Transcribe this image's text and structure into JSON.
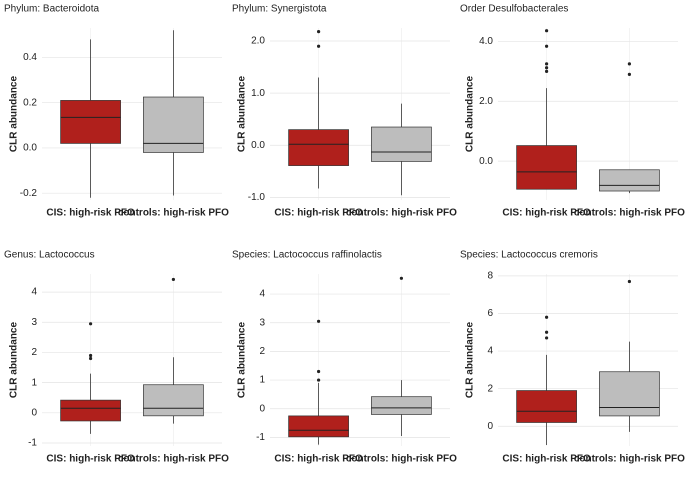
{
  "chart_data": [
    {
      "type": "box",
      "title": "Phylum: Bacteroidota",
      "y_label": "CLR abundance",
      "categories": [
        "CIS: high-risk PFO",
        "controls: high-risk PFO"
      ],
      "colors": [
        "#b0201c",
        "#bdbdbd"
      ],
      "boxes": [
        {
          "low": -0.22,
          "q1": 0.02,
          "median": 0.135,
          "q3": 0.21,
          "high": 0.48,
          "outliers": []
        },
        {
          "low": -0.21,
          "q1": -0.02,
          "median": 0.02,
          "q3": 0.225,
          "high": 0.52,
          "outliers": []
        }
      ],
      "ylim": [
        -0.23,
        0.53
      ],
      "yticks": [
        -0.2,
        {
          "value": 0,
          "label": "0.0"
        },
        0.2,
        0.4
      ],
      "grid": true
    },
    {
      "type": "box",
      "title": "Phylum: Synergistota",
      "y_label": "CLR abundance",
      "categories": [
        "CIS: high-risk PFO",
        "controls: high-risk PFO"
      ],
      "colors": [
        "#b0201c",
        "#bdbdbd"
      ],
      "boxes": [
        {
          "low": -0.83,
          "q1": -0.39,
          "median": 0.02,
          "q3": 0.3,
          "high": 1.3,
          "outliers": [
            2.18,
            1.9
          ]
        },
        {
          "low": -0.96,
          "q1": -0.31,
          "median": -0.13,
          "q3": 0.35,
          "high": 0.8,
          "outliers": []
        }
      ],
      "ylim": [
        -1.05,
        2.25
      ],
      "yticks": [
        {
          "value": -1,
          "label": "-1.0"
        },
        {
          "value": 0,
          "label": "0.0"
        },
        {
          "value": 1,
          "label": "1.0"
        },
        {
          "value": 2,
          "label": "2.0"
        }
      ],
      "grid": true
    },
    {
      "type": "box",
      "title": "Order  Desulfobacterales",
      "y_label": "CLR abundance",
      "categories": [
        "CIS: high-risk PFO",
        "controls: high-risk PFO"
      ],
      "colors": [
        "#b0201c",
        "#bdbdbd"
      ],
      "boxes": [
        {
          "low": -0.94,
          "q1": -0.94,
          "median": -0.36,
          "q3": 0.52,
          "high": 2.44,
          "outliers": [
            4.36,
            3.84,
            3.25,
            3.12,
            3.0
          ]
        },
        {
          "low": -1.07,
          "q1": -1.0,
          "median": -0.81,
          "q3": -0.29,
          "high": -0.29,
          "outliers": [
            3.25,
            2.9
          ]
        }
      ],
      "ylim": [
        -1.3,
        4.45
      ],
      "yticks": [
        {
          "value": 0,
          "label": "0.0"
        },
        {
          "value": 2,
          "label": "2.0"
        },
        {
          "value": 4,
          "label": "4.0"
        }
      ],
      "grid": true
    },
    {
      "type": "box",
      "title": "Genus: Lactococcus",
      "y_label": "CLR abundance",
      "categories": [
        "CIS: high-risk PFO",
        "controls: high-risk PFO"
      ],
      "colors": [
        "#b0201c",
        "#bdbdbd"
      ],
      "boxes": [
        {
          "low": -0.7,
          "q1": -0.27,
          "median": 0.15,
          "q3": 0.42,
          "high": 1.3,
          "outliers": [
            2.95,
            1.9,
            1.8
          ]
        },
        {
          "low": -0.36,
          "q1": -0.1,
          "median": 0.15,
          "q3": 0.93,
          "high": 1.84,
          "outliers": [
            4.42
          ]
        }
      ],
      "ylim": [
        -1.1,
        4.6
      ],
      "yticks": [
        -1,
        0,
        1,
        2,
        3,
        4
      ],
      "grid": true
    },
    {
      "type": "box",
      "title": "Species: Lactococcus raffinolactis",
      "y_label": "CLR abundance",
      "categories": [
        "CIS: high-risk PFO",
        "controls: high-risk PFO"
      ],
      "colors": [
        "#b0201c",
        "#bdbdbd"
      ],
      "boxes": [
        {
          "low": -1.25,
          "q1": -0.98,
          "median": -0.75,
          "q3": -0.25,
          "high": 0.9,
          "outliers": [
            3.05,
            1.3,
            1.0
          ]
        },
        {
          "low": -0.95,
          "q1": -0.2,
          "median": 0.03,
          "q3": 0.42,
          "high": 1.0,
          "outliers": [
            4.55
          ]
        }
      ],
      "ylim": [
        -1.3,
        4.7
      ],
      "yticks": [
        -1,
        0,
        1,
        2,
        3,
        4
      ],
      "grid": true
    },
    {
      "type": "box",
      "title": "Species: Lactococcus cremoris",
      "y_label": "CLR abundance",
      "categories": [
        "CIS: high-risk PFO",
        "controls: high-risk PFO"
      ],
      "colors": [
        "#b0201c",
        "#bdbdbd"
      ],
      "boxes": [
        {
          "low": -1.0,
          "q1": 0.2,
          "median": 0.8,
          "q3": 1.9,
          "high": 3.8,
          "outliers": [
            5.8,
            5.0,
            4.7
          ]
        },
        {
          "low": -0.3,
          "q1": 0.55,
          "median": 1.0,
          "q3": 2.9,
          "high": 4.5,
          "outliers": [
            7.7
          ]
        }
      ],
      "ylim": [
        -1.05,
        8.1
      ],
      "yticks": [
        0,
        2,
        4,
        6,
        8
      ],
      "grid": true
    }
  ]
}
